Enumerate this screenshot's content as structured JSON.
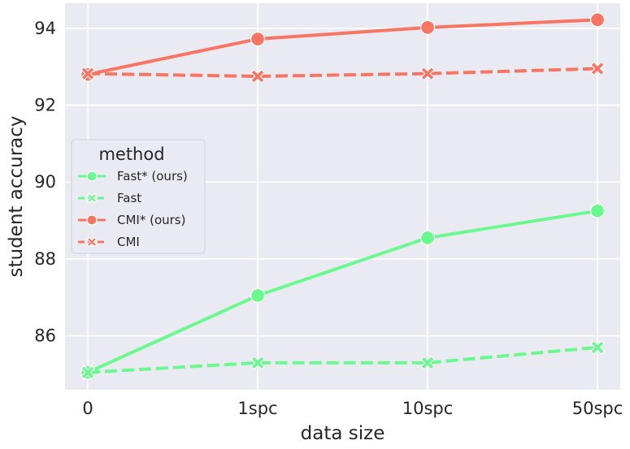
{
  "chart_data": {
    "type": "line",
    "xlabel": "data size",
    "ylabel": "student accuracy",
    "categories": [
      "0",
      "1spc",
      "10spc",
      "50spc"
    ],
    "ylim": [
      84.6,
      94.65
    ],
    "yticks": [
      86,
      88,
      90,
      92,
      94
    ],
    "grid": true,
    "legend": {
      "title": "method",
      "placement": "center-left"
    },
    "series": [
      {
        "name": "Fast* (ours)",
        "color": "#6af98f",
        "dashed": false,
        "marker": "circle",
        "values": [
          85.05,
          87.05,
          88.55,
          89.25
        ]
      },
      {
        "name": "Fast",
        "color": "#6af98f",
        "dashed": true,
        "marker": "x",
        "values": [
          85.05,
          85.3,
          85.3,
          85.7
        ]
      },
      {
        "name": "CMI* (ours)",
        "color": "#f97563",
        "dashed": false,
        "marker": "circle",
        "values": [
          92.8,
          93.72,
          94.02,
          94.22
        ]
      },
      {
        "name": "CMI",
        "color": "#f97563",
        "dashed": true,
        "marker": "x",
        "values": [
          92.82,
          92.75,
          92.82,
          92.95
        ]
      }
    ]
  }
}
